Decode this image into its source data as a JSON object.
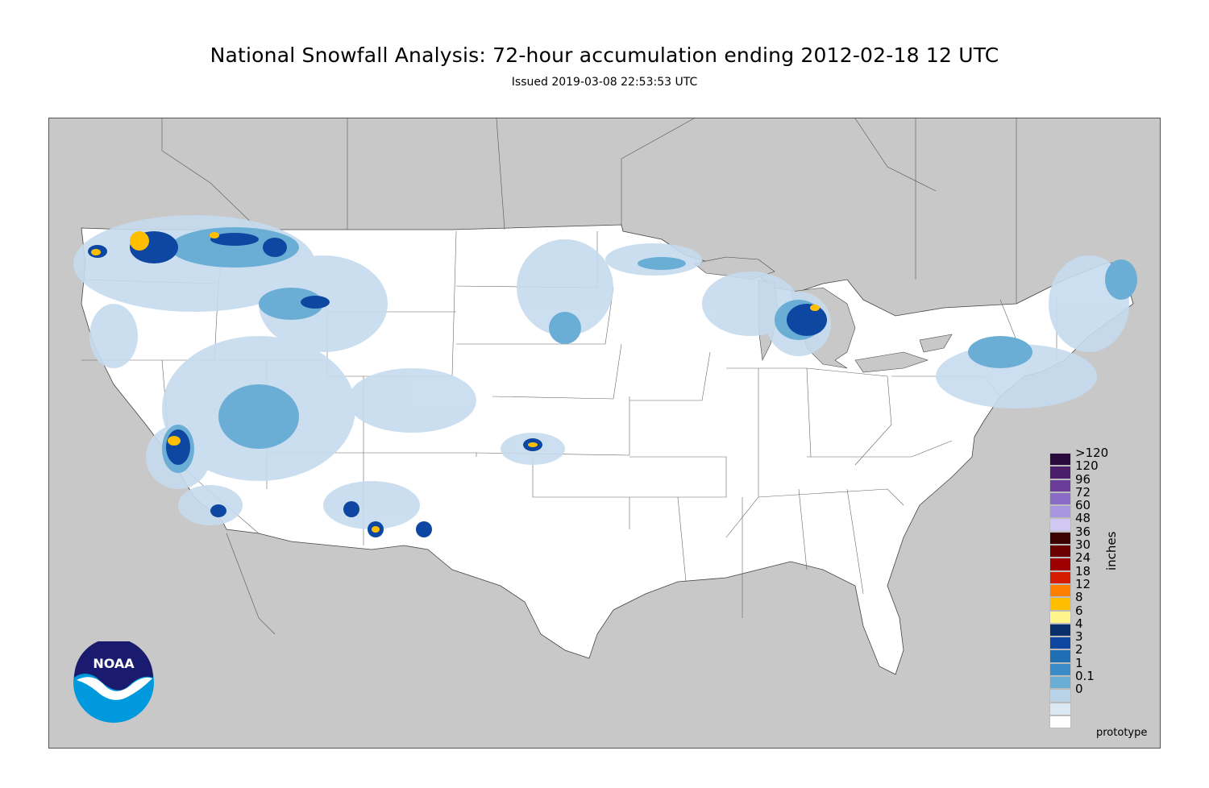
{
  "title": "National Snowfall Analysis: 72-hour accumulation ending 2012-02-18 12 UTC",
  "subtitle": "Issued 2019-03-08 22:53:53 UTC",
  "logo": {
    "name": "NOAA",
    "text": "NOAA"
  },
  "footer": {
    "prototype_label": "prototype"
  },
  "colors": {
    "map_background": "#c8c8c8",
    "land": "#ffffff",
    "border_line": "#555555",
    "noaa_dark": "#1a1a6e",
    "noaa_light": "#0099dd"
  },
  "legend": {
    "unit": "inches",
    "entries": [
      {
        "label": ">120",
        "color": "#2b0a3d"
      },
      {
        "label": "120",
        "color": "#4c1d6b"
      },
      {
        "label": "96",
        "color": "#6a3d9a"
      },
      {
        "label": "72",
        "color": "#8a6cc6"
      },
      {
        "label": "60",
        "color": "#a896e0"
      },
      {
        "label": "48",
        "color": "#d0c8f2"
      },
      {
        "label": "36",
        "color": "#3b0000"
      },
      {
        "label": "30",
        "color": "#6b0000"
      },
      {
        "label": "24",
        "color": "#9e0000"
      },
      {
        "label": "18",
        "color": "#d61c00"
      },
      {
        "label": "12",
        "color": "#ff7f00"
      },
      {
        "label": "8",
        "color": "#ffbf00"
      },
      {
        "label": "6",
        "color": "#fff58c"
      },
      {
        "label": "4",
        "color": "#08306b"
      },
      {
        "label": "3",
        "color": "#0d47a1"
      },
      {
        "label": "2",
        "color": "#1f6fb4"
      },
      {
        "label": "1",
        "color": "#3a8cc8"
      },
      {
        "label": "0.1",
        "color": "#6aaed6"
      },
      {
        "label": "0",
        "color": "#b9d4e8"
      },
      {
        "label": "",
        "color": "#dce9f4"
      },
      {
        "label": "",
        "color": "#ffffff"
      }
    ]
  }
}
